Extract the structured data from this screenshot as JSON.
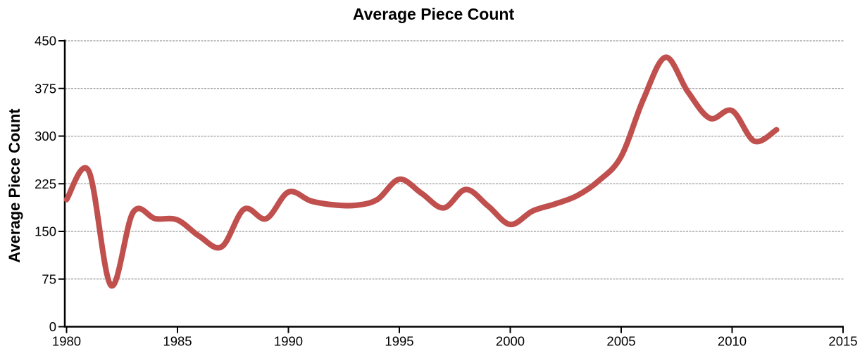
{
  "page": {
    "background": "#ffffff"
  },
  "chart_data": {
    "type": "line",
    "title": "Average Piece Count",
    "xlabel": "",
    "ylabel": "Average Piece Count",
    "x": [
      1980,
      1981,
      1982,
      1983,
      1984,
      1985,
      1986,
      1987,
      1988,
      1989,
      1990,
      1991,
      1992,
      1993,
      1994,
      1995,
      1996,
      1997,
      1998,
      1999,
      2000,
      2001,
      2002,
      2003,
      2004,
      2005,
      2006,
      2007,
      2008,
      2009,
      2010,
      2011,
      2012
    ],
    "series": [
      {
        "name": "Average Piece Count",
        "values": [
          200,
          245,
          65,
          180,
          170,
          168,
          142,
          126,
          185,
          170,
          212,
          198,
          192,
          191,
          200,
          232,
          210,
          187,
          216,
          190,
          161,
          182,
          193,
          206,
          230,
          268,
          358,
          424,
          370,
          328,
          340,
          292,
          310
        ],
        "color": "#C0504D",
        "smooth": true,
        "stroke_width": 8
      }
    ],
    "xlim": [
      1980,
      2015
    ],
    "ylim": [
      0,
      450
    ],
    "x_ticks": [
      1980,
      1985,
      1990,
      1995,
      2000,
      2005,
      2010,
      2015
    ],
    "y_ticks": [
      0,
      75,
      150,
      225,
      300,
      375,
      450
    ],
    "grid": {
      "horizontal": true,
      "vertical": false,
      "style": "dashed",
      "color": "#7f7f7f"
    },
    "axis_color": "#000000",
    "legend": "none"
  }
}
